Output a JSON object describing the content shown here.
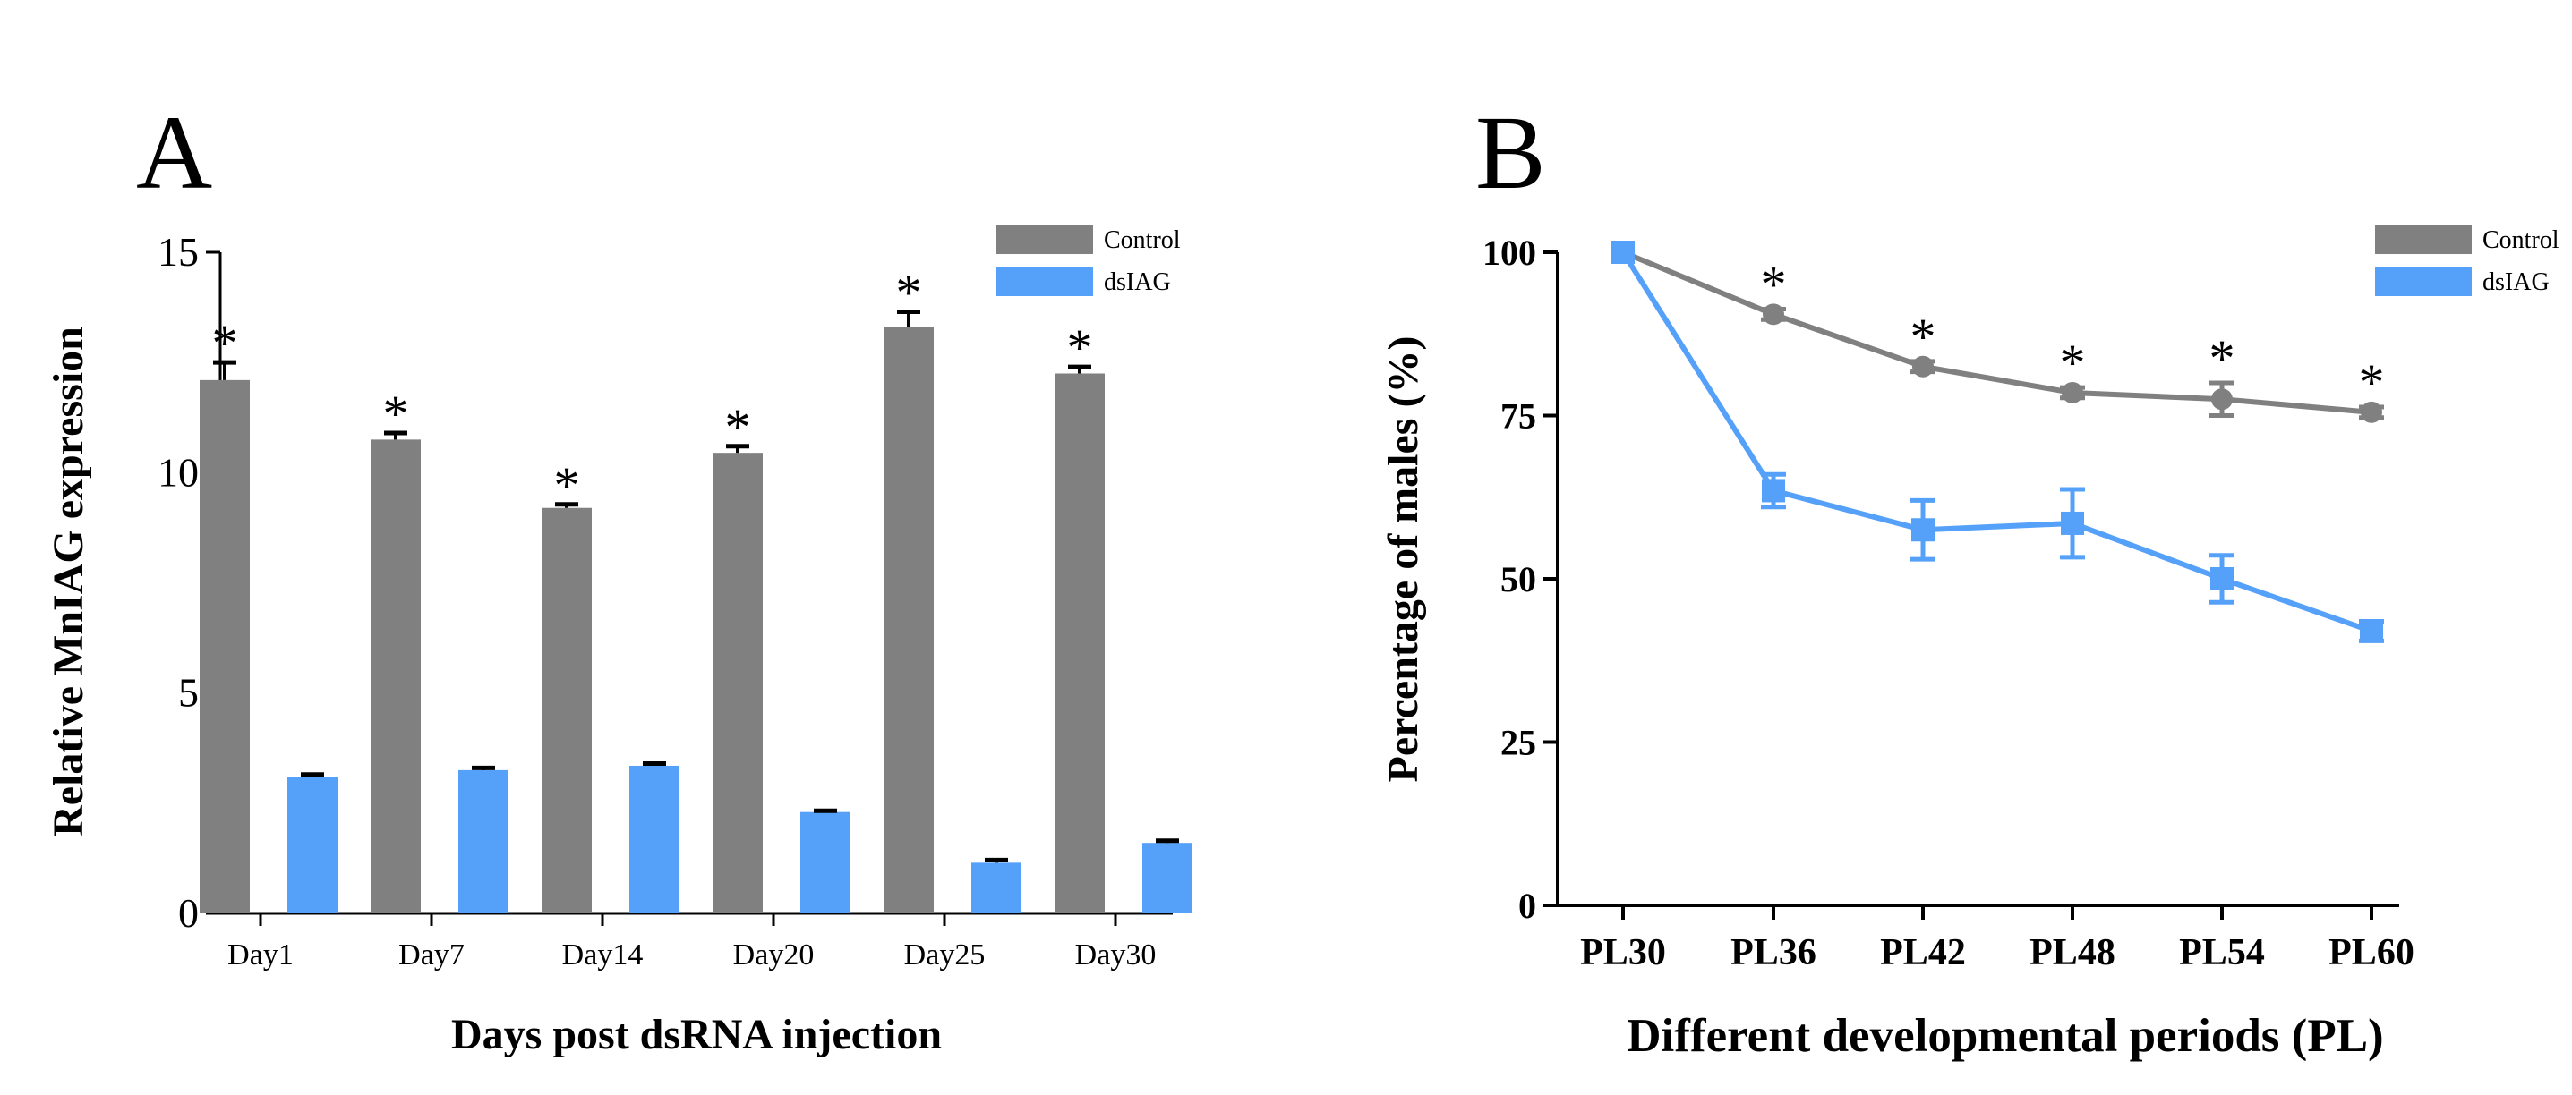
{
  "panels": {
    "a_label": "A",
    "b_label": "B"
  },
  "colors": {
    "control": "#808080",
    "dsiag": "#55A1FA",
    "axis": "#000000"
  },
  "chart_data": [
    {
      "type": "bar",
      "panel": "A",
      "title": "",
      "xlabel": "Days post dsRNA injection",
      "ylabel": "Relative MnIAG expression",
      "ylim": [
        0,
        15
      ],
      "yticks": [
        0,
        5,
        10,
        15
      ],
      "categories": [
        "Day1",
        "Day7",
        "Day14",
        "Day20",
        "Day25",
        "Day30"
      ],
      "series": [
        {
          "name": "Control",
          "values": [
            12.1,
            10.75,
            9.2,
            10.45,
            13.3,
            12.25
          ],
          "errors": [
            0.4,
            0.15,
            0.08,
            0.15,
            0.35,
            0.15
          ]
        },
        {
          "name": "dsIAG",
          "values": [
            3.1,
            3.25,
            3.35,
            2.3,
            1.15,
            1.6
          ],
          "errors": [
            0.05,
            0.05,
            0.05,
            0.03,
            0.06,
            0.05
          ]
        }
      ],
      "significance": [
        "*",
        "*",
        "*",
        "*",
        "*",
        "*"
      ],
      "legend": "top-right"
    },
    {
      "type": "line",
      "panel": "B",
      "title": "",
      "xlabel": "Different developmental periods (PL)",
      "ylabel": "Percentage of males (%)",
      "ylim": [
        0,
        100
      ],
      "yticks": [
        0,
        25,
        50,
        75,
        100
      ],
      "categories": [
        "PL30",
        "PL36",
        "PL42",
        "PL48",
        "PL54",
        "PL60"
      ],
      "series": [
        {
          "name": "Control",
          "marker": "circle",
          "values": [
            100,
            90.5,
            82.5,
            78.5,
            77.5,
            75.5
          ],
          "errors": [
            0,
            0.8,
            0.8,
            0.8,
            2.5,
            0.8
          ]
        },
        {
          "name": "dsIAG",
          "marker": "square",
          "values": [
            100,
            63.5,
            57.5,
            58.5,
            50,
            42
          ],
          "errors": [
            0,
            2.5,
            4.5,
            5.2,
            3.6,
            1.5
          ]
        }
      ],
      "significance": [
        "",
        "*",
        "*",
        "*",
        "*",
        "*"
      ],
      "legend": "top-right"
    }
  ]
}
